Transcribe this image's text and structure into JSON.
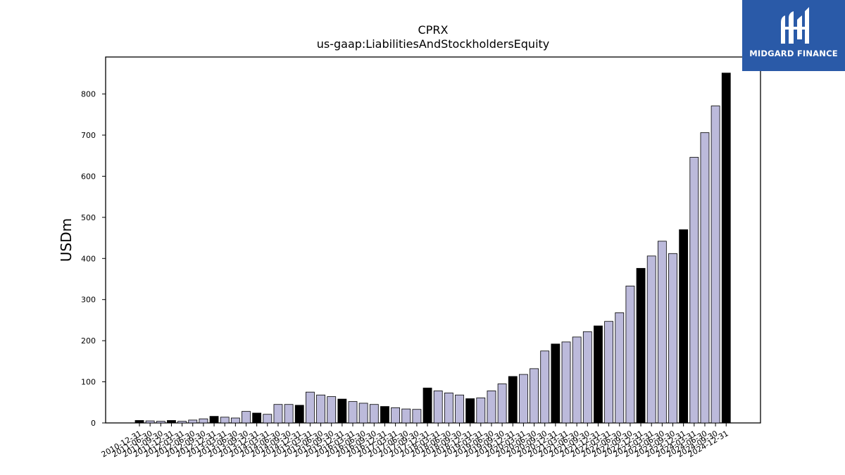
{
  "logo": {
    "text": "MIDGARD FINANCE"
  },
  "chart_data": {
    "type": "bar",
    "title": "CPRX",
    "subtitle": "us-gaap:LiabilitiesAndStockholdersEquity",
    "xlabel": "",
    "ylabel": "USDm",
    "ylim": [
      0,
      890
    ],
    "yticks": [
      0,
      100,
      200,
      300,
      400,
      500,
      600,
      700,
      800
    ],
    "grid": false,
    "colors": {
      "annual": "#000000",
      "quarter": "#bcbadb",
      "edge": "#000000"
    },
    "categories": [
      "2010-12-31",
      "2011-06-30",
      "2011-09-30",
      "2011-12-31",
      "2012-03-31",
      "2012-06-30",
      "2012-09-30",
      "2012-12-31",
      "2013-03-31",
      "2013-06-30",
      "2013-09-30",
      "2013-12-31",
      "2014-03-31",
      "2014-06-30",
      "2014-09-30",
      "2014-12-31",
      "2015-03-31",
      "2015-06-30",
      "2015-09-30",
      "2015-12-31",
      "2016-03-31",
      "2016-06-30",
      "2016-09-30",
      "2016-12-31",
      "2017-03-31",
      "2017-06-30",
      "2017-09-30",
      "2017-12-31",
      "2018-03-31",
      "2018-06-30",
      "2018-09-30",
      "2018-12-31",
      "2019-03-31",
      "2019-06-30",
      "2019-09-30",
      "2019-12-31",
      "2020-03-31",
      "2020-06-30",
      "2020-09-30",
      "2020-12-31",
      "2021-03-31",
      "2021-06-30",
      "2021-09-30",
      "2021-12-31",
      "2022-03-31",
      "2022-06-30",
      "2022-09-30",
      "2022-12-31",
      "2023-03-31",
      "2023-06-30",
      "2023-09-30",
      "2023-12-31",
      "2024-03-31",
      "2024-06-30",
      "2024-09-30",
      "2024-12-31"
    ],
    "values": [
      6,
      5,
      4,
      6,
      4,
      7,
      10,
      16,
      14,
      12,
      28,
      24,
      21,
      45,
      45,
      43,
      75,
      68,
      64,
      58,
      52,
      48,
      45,
      40,
      37,
      34,
      33,
      85,
      78,
      73,
      68,
      59,
      61,
      78,
      95,
      113,
      118,
      132,
      175,
      192,
      197,
      209,
      222,
      236,
      247,
      268,
      333,
      376,
      406,
      442,
      412,
      470,
      646,
      706,
      771,
      851
    ],
    "annual": [
      true,
      false,
      false,
      true,
      false,
      false,
      false,
      true,
      false,
      false,
      false,
      true,
      false,
      false,
      false,
      true,
      false,
      false,
      false,
      true,
      false,
      false,
      false,
      true,
      false,
      false,
      false,
      true,
      false,
      false,
      false,
      true,
      false,
      false,
      false,
      true,
      false,
      false,
      false,
      true,
      false,
      false,
      false,
      true,
      false,
      false,
      false,
      true,
      false,
      false,
      false,
      true,
      false,
      false,
      false,
      true
    ]
  }
}
